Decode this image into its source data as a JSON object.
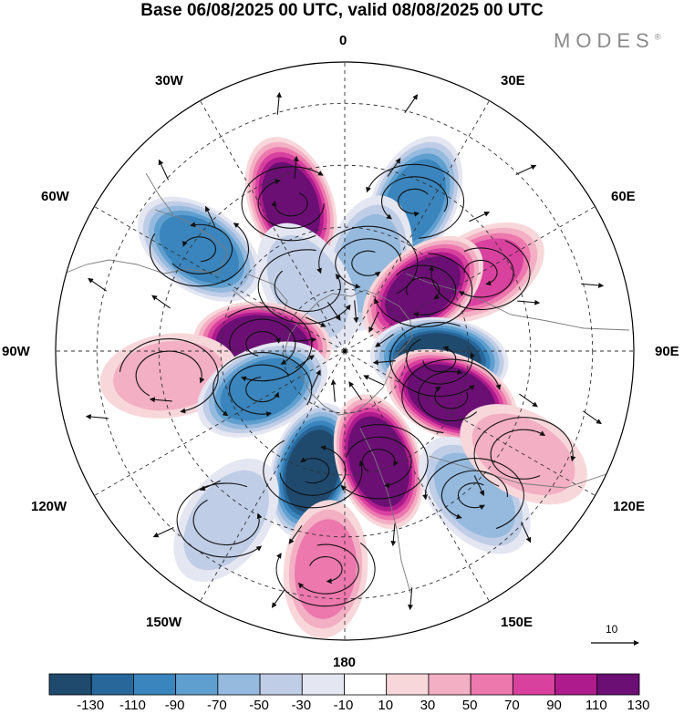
{
  "title": "Base 06/08/2025 00 UTC, valid 08/08/2025 00 UTC",
  "brand": "MODES",
  "brand_mark": "®",
  "longitude_labels": {
    "n0": "0",
    "w30": "30W",
    "e30": "30E",
    "w60": "60W",
    "e60": "60E",
    "w90": "90W",
    "e90": "90E",
    "w120": "120W",
    "e120": "120E",
    "w150": "150W",
    "e150": "150E",
    "s180": "180"
  },
  "reference_vector": {
    "label": "10"
  },
  "colorbar": {
    "colors": [
      "#1f4a6e",
      "#27679a",
      "#3a85bd",
      "#5f9fcf",
      "#95bade",
      "#c0cde6",
      "#e4e6f2",
      "#ffffff",
      "#f8d7db",
      "#f3afc3",
      "#ec78ad",
      "#d9419f",
      "#ad1b8d",
      "#6b0f74"
    ],
    "tick_labels": [
      "-130",
      "-110",
      "-90",
      "-70",
      "-50",
      "-30",
      "-10",
      "10",
      "30",
      "50",
      "70",
      "90",
      "110",
      "130"
    ]
  },
  "anomaly_centers": [
    {
      "lon": 340,
      "lat": 52,
      "value": 110
    },
    {
      "lon": 25,
      "lat": 50,
      "value": -90
    },
    {
      "lon": 305,
      "lat": 47,
      "value": -90
    },
    {
      "lon": 15,
      "lat": 68,
      "value": -50
    },
    {
      "lon": 330,
      "lat": 72,
      "value": -30
    },
    {
      "lon": 60,
      "lat": 52,
      "value": 70
    },
    {
      "lon": 52,
      "lat": 66,
      "value": 110
    },
    {
      "lon": 275,
      "lat": 70,
      "value": 130
    },
    {
      "lon": 262,
      "lat": 47,
      "value": 30
    },
    {
      "lon": 95,
      "lat": 67,
      "value": -130
    },
    {
      "lon": 113,
      "lat": 62,
      "value": 130
    },
    {
      "lon": 245,
      "lat": 68,
      "value": -90
    },
    {
      "lon": 195,
      "lat": 60,
      "value": -130
    },
    {
      "lon": 163,
      "lat": 62,
      "value": 130
    },
    {
      "lon": 138,
      "lat": 43,
      "value": -50
    },
    {
      "lon": 185,
      "lat": 37,
      "value": 50
    },
    {
      "lon": 215,
      "lat": 40,
      "value": -30
    },
    {
      "lon": 120,
      "lat": 40,
      "value": 30
    }
  ]
}
